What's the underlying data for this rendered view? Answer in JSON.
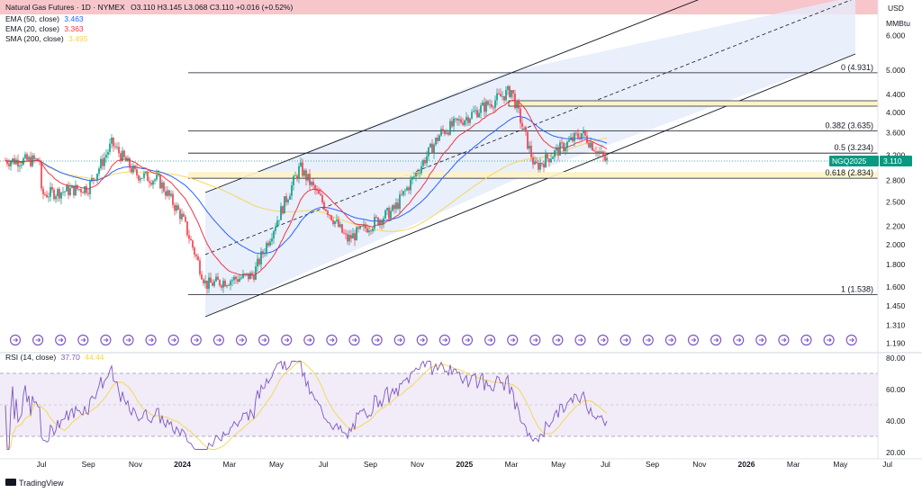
{
  "header": {
    "title": "Natural Gas Futures · 1D · NYMEX",
    "ohlc": "O3.110 H3.145 L3.068 C3.110 +0.016 (+0.52%)"
  },
  "indicators": [
    {
      "label": "EMA (50, close)",
      "value": "3.463",
      "color": "#2962ff"
    },
    {
      "label": "EMA (20, close)",
      "value": "3.363",
      "color": "#f23645"
    },
    {
      "label": "SMA (200, close)",
      "value": "3.495",
      "color": "#f7d44a"
    }
  ],
  "rsi": {
    "label": "RSI (14, close)",
    "value1": "37.70",
    "value2": "44.44",
    "color1": "#7e57c2",
    "color2": "#f7d44a"
  },
  "price_axis": {
    "currency": "USD",
    "unit": "MMBtu",
    "ticks": [
      "6.000",
      "5.000",
      "4.400",
      "4.000",
      "3.600",
      "3.200",
      "2.800",
      "2.500",
      "2.200",
      "2.000",
      "1.800",
      "1.600",
      "1.450",
      "1.310",
      "1.190"
    ],
    "current_symbol": "NGQ2025",
    "current_price": "3.110"
  },
  "rsi_axis": {
    "ticks": [
      "80.00",
      "60.00",
      "40.00",
      "20.00"
    ]
  },
  "time_axis": {
    "ticks": [
      "Jul",
      "Sep",
      "Nov",
      "2024",
      "Mar",
      "May",
      "Jul",
      "Sep",
      "Nov",
      "2025",
      "Mar",
      "May",
      "Jul",
      "Sep",
      "Nov",
      "2026",
      "Mar",
      "May",
      "Jul"
    ]
  },
  "fib_levels": [
    {
      "label": "0 (4.931)",
      "price": 4.931
    },
    {
      "label": "0.382 (3.635)",
      "price": 3.635
    },
    {
      "label": "0.5 (3.234)",
      "price": 3.234
    },
    {
      "label": "0.618 (2.834)",
      "price": 2.834
    },
    {
      "label": "1 (1.538)",
      "price": 1.538
    }
  ],
  "brand": "TradingView",
  "colors": {
    "up": "#089981",
    "down": "#f23645",
    "ema50": "#2962ff",
    "ema20": "#f23645",
    "sma200": "#f7d44a",
    "rsi": "#7e57c2",
    "rsi_ma": "#f7d44a",
    "channel_fill": "#e3ebfa",
    "top_band": "#f7c6cb",
    "zone": "#fdf3c6",
    "price_tag": "#089981"
  },
  "chart_data": {
    "type": "candlestick",
    "symbol": "Natural Gas Futures",
    "interval": "1D",
    "price_scale": "log",
    "last_price": 3.11,
    "approx_close_path": [
      {
        "x": "2023-07",
        "y": 2.6
      },
      {
        "x": "2023-09",
        "y": 2.7
      },
      {
        "x": "2023-10",
        "y": 3.4
      },
      {
        "x": "2023-11",
        "y": 2.9
      },
      {
        "x": "2023-12",
        "y": 2.8
      },
      {
        "x": "2024-01",
        "y": 2.3
      },
      {
        "x": "2024-02",
        "y": 1.62
      },
      {
        "x": "2024-04",
        "y": 1.7
      },
      {
        "x": "2024-06",
        "y": 3.0
      },
      {
        "x": "2024-08",
        "y": 2.05
      },
      {
        "x": "2024-10",
        "y": 2.4
      },
      {
        "x": "2024-12",
        "y": 3.6
      },
      {
        "x": "2025-03",
        "y": 4.5
      },
      {
        "x": "2025-04",
        "y": 3.0
      },
      {
        "x": "2025-06",
        "y": 3.6
      },
      {
        "x": "2025-07",
        "y": 3.11
      }
    ]
  }
}
